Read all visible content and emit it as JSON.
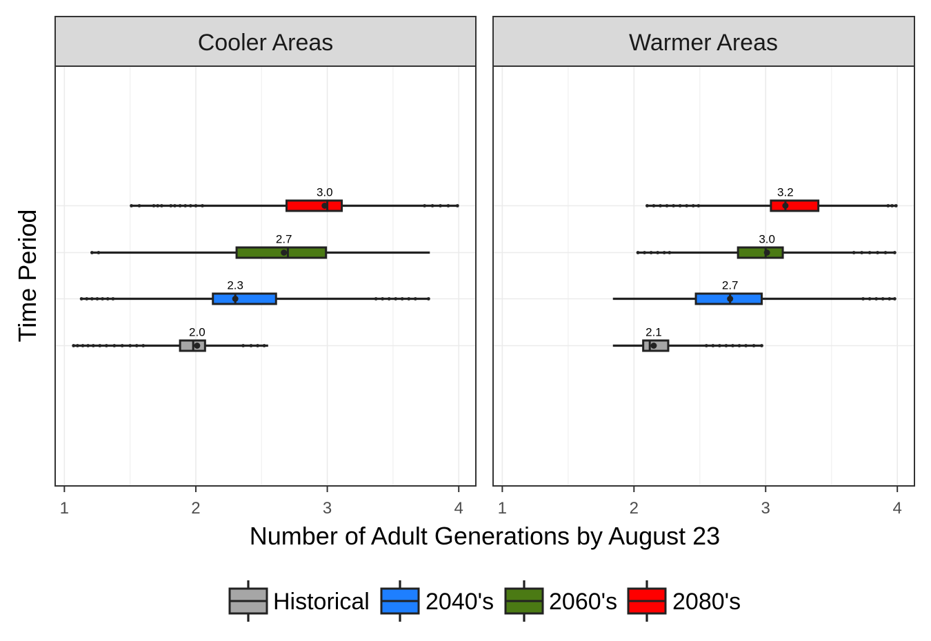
{
  "chart_data": {
    "type": "boxplot",
    "xlabel": "Number of Adult Generations by August 23",
    "ylabel": "Time Period",
    "xlim": [
      0.93,
      4.13
    ],
    "x_ticks": [
      1,
      2,
      3,
      4
    ],
    "grid": true,
    "legend_position": "bottom",
    "series": [
      {
        "name": "Historical",
        "color": "#A6A6A6"
      },
      {
        "name": "2040's",
        "color": "#1E7FFF"
      },
      {
        "name": "2060's",
        "color": "#4B7A14"
      },
      {
        "name": "2080's",
        "color": "#FF0000"
      }
    ],
    "panels": [
      {
        "title": "Cooler Areas",
        "boxes": [
          {
            "series": "Historical",
            "whisker_low": 1.07,
            "q1": 1.88,
            "median": 1.98,
            "q3": 2.07,
            "whisker_high": 2.55,
            "mean": 2.01,
            "label": "2.0",
            "outliers": [
              1.07,
              1.1,
              1.14,
              1.18,
              1.22,
              1.27,
              1.32,
              1.38,
              1.44,
              1.5,
              1.55,
              1.6,
              2.36,
              2.42,
              2.47,
              2.52
            ]
          },
          {
            "series": "2040's",
            "whisker_low": 1.13,
            "q1": 2.13,
            "median": 2.3,
            "q3": 2.61,
            "whisker_high": 3.77,
            "mean": 2.3,
            "label": "2.3",
            "outliers": [
              1.13,
              1.17,
              1.21,
              1.25,
              1.29,
              1.33,
              1.37,
              3.37,
              3.42,
              3.47,
              3.52,
              3.57,
              3.62,
              3.67,
              3.77
            ]
          },
          {
            "series": "2060's",
            "whisker_low": 1.21,
            "q1": 2.31,
            "median": 2.7,
            "q3": 2.99,
            "whisker_high": 3.78,
            "mean": 2.67,
            "label": "2.7",
            "outliers": [
              1.21,
              1.26
            ]
          },
          {
            "series": "2080's",
            "whisker_low": 1.51,
            "q1": 2.69,
            "median": 3.0,
            "q3": 3.11,
            "whisker_high": 3.99,
            "mean": 2.98,
            "label": "3.0",
            "outliers": [
              1.51,
              1.57,
              1.68,
              1.71,
              1.74,
              1.81,
              1.84,
              1.88,
              1.92,
              1.96,
              2.0,
              2.05,
              3.74,
              3.8,
              3.86,
              3.92,
              3.99
            ]
          }
        ]
      },
      {
        "title": "Warmer Areas",
        "boxes": [
          {
            "series": "Historical",
            "whisker_low": 1.84,
            "q1": 2.07,
            "median": 2.12,
            "q3": 2.26,
            "whisker_high": 2.97,
            "mean": 2.15,
            "label": "2.1",
            "outliers": [
              2.55,
              2.6,
              2.65,
              2.7,
              2.75,
              2.8,
              2.85,
              2.91,
              2.97
            ]
          },
          {
            "series": "2040's",
            "whisker_low": 1.84,
            "q1": 2.47,
            "median": 2.73,
            "q3": 2.97,
            "whisker_high": 3.98,
            "mean": 2.73,
            "label": "2.7",
            "outliers": [
              3.74,
              3.79,
              3.84,
              3.89,
              3.94,
              3.98
            ]
          },
          {
            "series": "2060's",
            "whisker_low": 2.03,
            "q1": 2.79,
            "median": 3.0,
            "q3": 3.13,
            "whisker_high": 3.98,
            "mean": 3.01,
            "label": "3.0",
            "outliers": [
              2.03,
              2.08,
              2.13,
              2.18,
              2.23,
              2.27,
              3.67,
              3.73,
              3.79,
              3.85,
              3.91,
              3.98
            ]
          },
          {
            "series": "2080's",
            "whisker_low": 2.1,
            "q1": 3.04,
            "median": 3.15,
            "q3": 3.4,
            "whisker_high": 3.99,
            "mean": 3.15,
            "label": "3.2",
            "outliers": [
              2.1,
              2.15,
              2.2,
              2.25,
              2.3,
              2.35,
              2.4,
              2.45,
              2.49,
              3.93,
              3.96,
              3.99
            ]
          }
        ]
      }
    ]
  }
}
